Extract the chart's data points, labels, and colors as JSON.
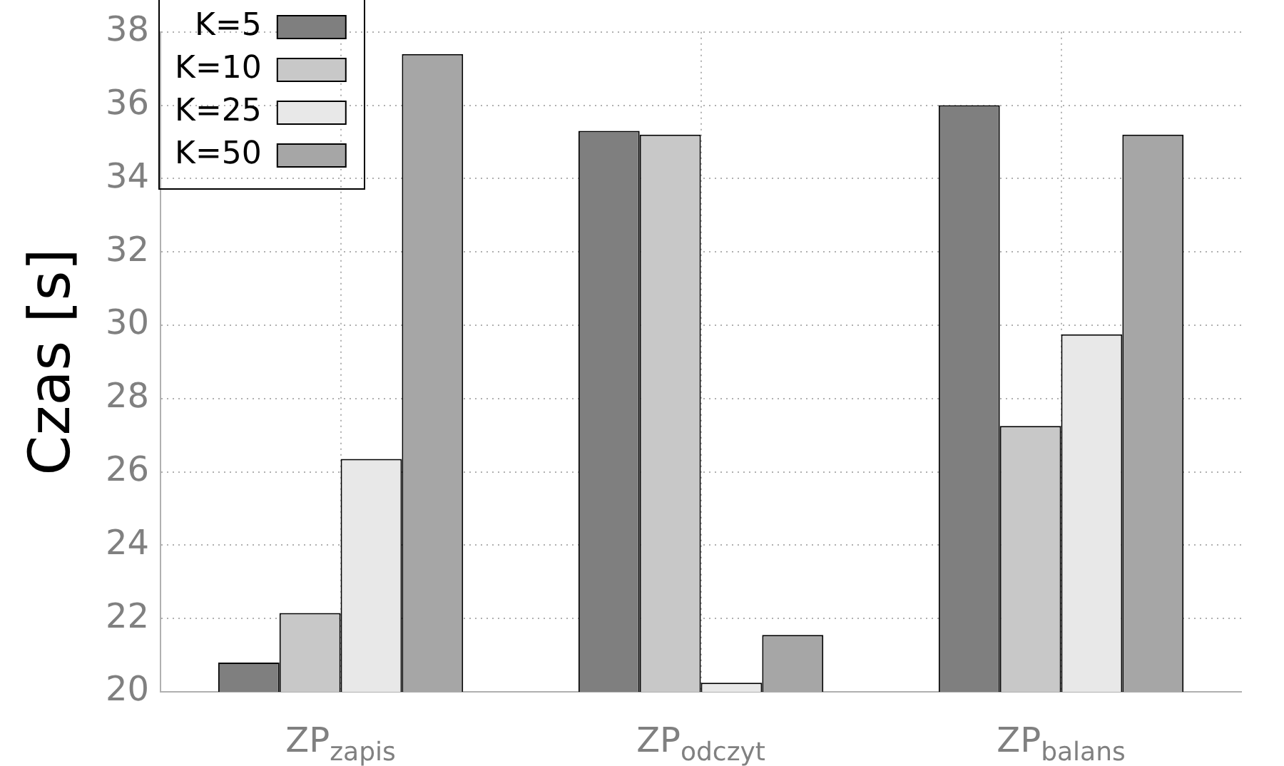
{
  "chart_data": {
    "type": "bar",
    "ylabel": "Czas [s]",
    "categories": [
      "ZP$_{zapis}$",
      "ZP$_{odczyt}$",
      "ZP$_{balans}$"
    ],
    "series": [
      {
        "name": "K=5",
        "color": "#7f7f7f",
        "values": [
          20.8,
          35.3,
          36.0
        ]
      },
      {
        "name": "K=10",
        "color": "#c8c8c8",
        "values": [
          22.15,
          35.2,
          27.25
        ]
      },
      {
        "name": "K=25",
        "color": "#e8e8e8",
        "values": [
          26.35,
          20.25,
          29.75
        ]
      },
      {
        "name": "K=50",
        "color": "#a6a6a6",
        "values": [
          37.4,
          21.55,
          35.2
        ]
      }
    ],
    "ylim": [
      20,
      38
    ],
    "yticks": [
      20,
      22,
      24,
      26,
      28,
      30,
      32,
      34,
      36,
      38
    ],
    "grid": true,
    "legend": "top left"
  }
}
